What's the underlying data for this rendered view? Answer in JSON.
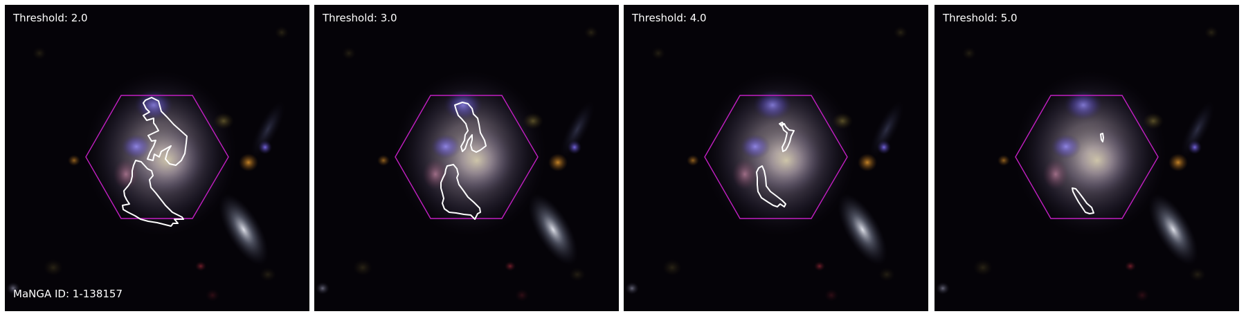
{
  "panels": [
    {
      "threshold_label": "Threshold: 2.0"
    },
    {
      "threshold_label": "Threshold: 3.0"
    },
    {
      "threshold_label": "Threshold: 4.0"
    },
    {
      "threshold_label": "Threshold: 5.0"
    }
  ],
  "manga_id_label": "MaNGA ID: 1-138157",
  "colors": {
    "background": "#050308",
    "hexagon": "#c21fc2",
    "contour": "#ffffff",
    "text": "#ffffff"
  }
}
